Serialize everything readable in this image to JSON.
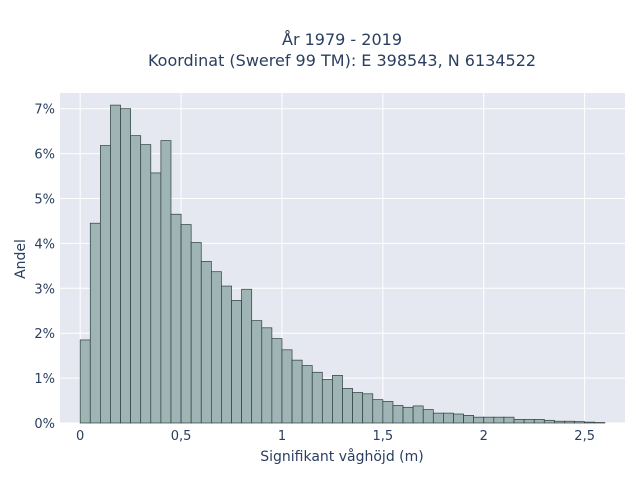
{
  "chart_data": {
    "type": "bar",
    "title_line1": "År 1979 - 2019",
    "title_line2": "Koordinat (Sweref 99 TM): E 398543, N 6134522",
    "xlabel": "Signifikant våghöjd (m)",
    "ylabel": "Andel",
    "bin_width": 0.05,
    "xlim": [
      -0.1,
      2.7
    ],
    "ylim": [
      0,
      0.0735
    ],
    "x_ticks": [
      0,
      0.5,
      1,
      1.5,
      2,
      2.5
    ],
    "x_tick_labels": [
      "0",
      "0,5",
      "1",
      "1,5",
      "2",
      "2,5"
    ],
    "y_ticks": [
      0,
      0.01,
      0.02,
      0.03,
      0.04,
      0.05,
      0.06,
      0.07
    ],
    "y_tick_labels": [
      "0%",
      "1%",
      "2%",
      "3%",
      "4%",
      "5%",
      "6%",
      "7%"
    ],
    "bin_starts": [
      0,
      0.05,
      0.1,
      0.15,
      0.2,
      0.25,
      0.3,
      0.35,
      0.4,
      0.45,
      0.5,
      0.55,
      0.6,
      0.65,
      0.7,
      0.75,
      0.8,
      0.85,
      0.9,
      0.95,
      1,
      1.05,
      1.1,
      1.15,
      1.2,
      1.25,
      1.3,
      1.35,
      1.4,
      1.45,
      1.5,
      1.55,
      1.6,
      1.65,
      1.7,
      1.75,
      1.8,
      1.85,
      1.9,
      1.95,
      2,
      2.05,
      2.1,
      2.15,
      2.2,
      2.25,
      2.3,
      2.35,
      2.4,
      2.45,
      2.5,
      2.55
    ],
    "values": [
      0.0185,
      0.0445,
      0.0618,
      0.0708,
      0.07,
      0.064,
      0.062,
      0.0557,
      0.0629,
      0.0465,
      0.0442,
      0.0402,
      0.036,
      0.0337,
      0.0305,
      0.0273,
      0.0298,
      0.0228,
      0.0212,
      0.0188,
      0.0163,
      0.014,
      0.0128,
      0.0113,
      0.0097,
      0.0106,
      0.0077,
      0.0068,
      0.0065,
      0.0052,
      0.0048,
      0.0039,
      0.0035,
      0.0038,
      0.003,
      0.0022,
      0.0022,
      0.002,
      0.0017,
      0.0013,
      0.0013,
      0.0013,
      0.0013,
      0.0008,
      0.0008,
      0.0008,
      0.0006,
      0.0004,
      0.0004,
      0.0003,
      0.0002,
      0.0001
    ],
    "grid": true,
    "legend": "none",
    "colors": {
      "plot_bg": "#e5e8f0",
      "grid": "#ffffff",
      "bar_fill": "#9fb5b5",
      "bar_stroke": "#2d3d3d",
      "text": "#2a3f5f"
    }
  }
}
